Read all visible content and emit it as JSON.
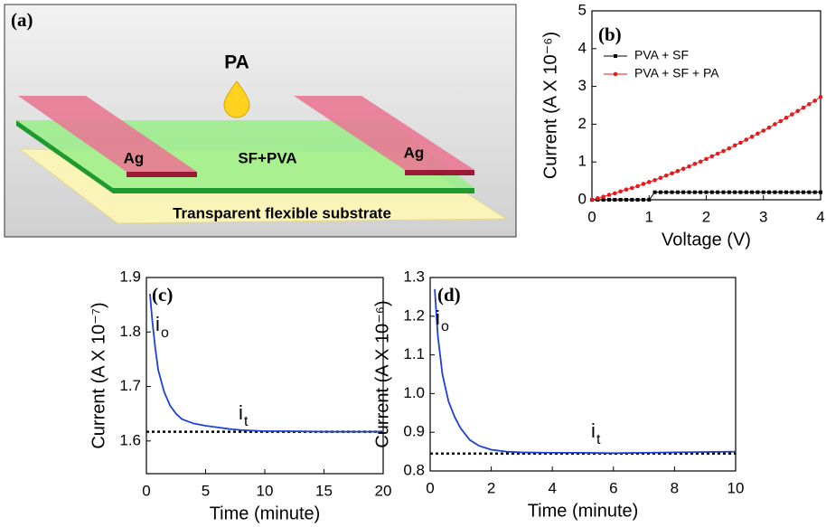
{
  "diagram": {
    "panel_label": "(a)",
    "drop_label": "PA",
    "electrode_left": "Ag",
    "electrode_right": "Ag",
    "layer_label": "SF+PVA",
    "substrate_label": "Transparent flexible substrate"
  },
  "chart_data": [
    {
      "type": "line",
      "panel_label": "(b)",
      "xlabel": "Voltage (V)",
      "ylabel": "Current (A X 10⁻⁶)",
      "xlim": [
        0,
        4
      ],
      "ylim": [
        0,
        5
      ],
      "xticks": [
        0,
        1,
        2,
        3,
        4
      ],
      "yticks": [
        0,
        1,
        2,
        3,
        4,
        5
      ],
      "markers": true,
      "legend": "upper left",
      "x": [
        0,
        0.1,
        0.2,
        0.3,
        0.4,
        0.5,
        0.6,
        0.7,
        0.8,
        0.9,
        1.0,
        1.1,
        1.2,
        1.3,
        1.4,
        1.5,
        1.6,
        1.7,
        1.8,
        1.9,
        2.0,
        2.1,
        2.2,
        2.3,
        2.4,
        2.5,
        2.6,
        2.7,
        2.8,
        2.9,
        3.0,
        3.1,
        3.2,
        3.3,
        3.4,
        3.5,
        3.6,
        3.7,
        3.8,
        3.9,
        4.0
      ],
      "series": [
        {
          "name": "PVA + SF",
          "color": "#000000",
          "marker": "square",
          "values": [
            0,
            0,
            0,
            0,
            0,
            0,
            0,
            0,
            0,
            0,
            0,
            0.2,
            0.2,
            0.2,
            0.2,
            0.2,
            0.2,
            0.2,
            0.2,
            0.2,
            0.2,
            0.2,
            0.2,
            0.2,
            0.2,
            0.2,
            0.2,
            0.2,
            0.2,
            0.2,
            0.2,
            0.2,
            0.2,
            0.2,
            0.2,
            0.2,
            0.2,
            0.2,
            0.2,
            0.2,
            0.2
          ]
        },
        {
          "name": "PVA + SF + PA",
          "color": "#e41a1c",
          "marker": "circle",
          "values": [
            0,
            0.04,
            0.08,
            0.13,
            0.17,
            0.22,
            0.27,
            0.31,
            0.36,
            0.42,
            0.47,
            0.52,
            0.58,
            0.64,
            0.7,
            0.76,
            0.82,
            0.88,
            0.95,
            1.01,
            1.08,
            1.15,
            1.22,
            1.29,
            1.36,
            1.44,
            1.51,
            1.59,
            1.67,
            1.75,
            1.83,
            1.91,
            2.0,
            2.08,
            2.17,
            2.26,
            2.35,
            2.44,
            2.53,
            2.62,
            2.72
          ]
        }
      ]
    },
    {
      "type": "line",
      "panel_label": "(c)",
      "xlabel": "Time (minute)",
      "ylabel": "Current (A X 10⁻⁷)",
      "xlim": [
        0,
        20
      ],
      "ylim": [
        1.54,
        1.9
      ],
      "xticks": [
        0,
        5,
        10,
        15,
        20
      ],
      "yticks": [
        1.6,
        1.7,
        1.8,
        1.9
      ],
      "markers": false,
      "x": [
        0.3,
        0.5,
        0.75,
        1,
        1.5,
        2,
        2.5,
        3,
        4,
        5,
        6,
        7,
        8,
        10,
        12,
        15,
        20
      ],
      "series": [
        {
          "color": "#1f3fd6",
          "values": [
            1.87,
            1.82,
            1.77,
            1.73,
            1.69,
            1.665,
            1.65,
            1.64,
            1.632,
            1.628,
            1.625,
            1.622,
            1.62,
            1.618,
            1.618,
            1.617,
            1.617
          ]
        }
      ],
      "reference_line": {
        "y": 1.617,
        "style": "dotted",
        "color": "#000000"
      },
      "annotations": [
        {
          "text": "i",
          "subscript": "o"
        },
        {
          "text": "i",
          "subscript": "t"
        }
      ]
    },
    {
      "type": "line",
      "panel_label": "(d)",
      "xlabel": "Time (minute)",
      "ylabel": "Current (A X 10⁻⁶)",
      "xlim": [
        0,
        10
      ],
      "ylim": [
        0.8,
        1.3
      ],
      "xticks": [
        0,
        2,
        4,
        6,
        8,
        10
      ],
      "yticks": [
        0.8,
        0.9,
        {
          "value": 1,
          "label": "1.0"
        },
        1.1,
        1.2,
        1.3
      ],
      "markers": false,
      "x": [
        0.15,
        0.25,
        0.4,
        0.6,
        0.8,
        1,
        1.3,
        1.6,
        2,
        2.5,
        3,
        4,
        5,
        6,
        7,
        8,
        9,
        10
      ],
      "series": [
        {
          "color": "#1f3fd6",
          "values": [
            1.27,
            1.15,
            1.05,
            0.98,
            0.94,
            0.91,
            0.88,
            0.865,
            0.855,
            0.85,
            0.848,
            0.847,
            0.847,
            0.846,
            0.847,
            0.848,
            0.849,
            0.85
          ]
        }
      ],
      "reference_line": {
        "y": 0.845,
        "style": "dotted",
        "color": "#000000"
      },
      "annotations": [
        {
          "text": "i",
          "subscript": "o"
        },
        {
          "text": "i",
          "subscript": "t"
        }
      ]
    }
  ]
}
